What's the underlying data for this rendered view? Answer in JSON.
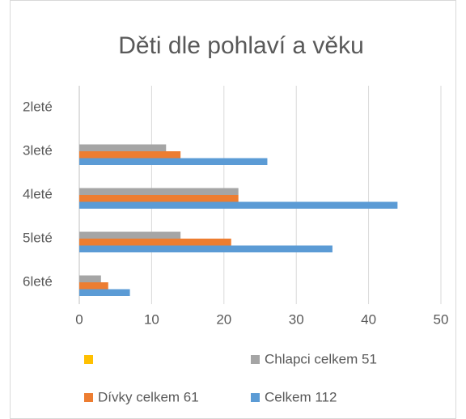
{
  "chart_data": {
    "type": "hbar",
    "title": "Děti dle pohlaví a věku",
    "categories": [
      "2leté",
      "3leté",
      "4leté",
      "5leté",
      "6leté"
    ],
    "series": [
      {
        "color": "#ffc000",
        "values": [
          null,
          null,
          null,
          null,
          null
        ]
      },
      {
        "name": "Chlapci celkem 51",
        "color": "#a5a5a5",
        "values": [
          0,
          12,
          22,
          14,
          3
        ]
      },
      {
        "name": "Dívky celkem 61",
        "color": "#ed7d31",
        "values": [
          0,
          14,
          22,
          21,
          4
        ]
      },
      {
        "name": "Celkem 112",
        "color": "#5b9bd5",
        "values": [
          0,
          26,
          44,
          35,
          7
        ]
      }
    ],
    "xlim": [
      0,
      50
    ],
    "xticks": [
      0,
      10,
      20,
      30,
      40,
      50
    ],
    "grid": true,
    "legend": "bottom"
  }
}
